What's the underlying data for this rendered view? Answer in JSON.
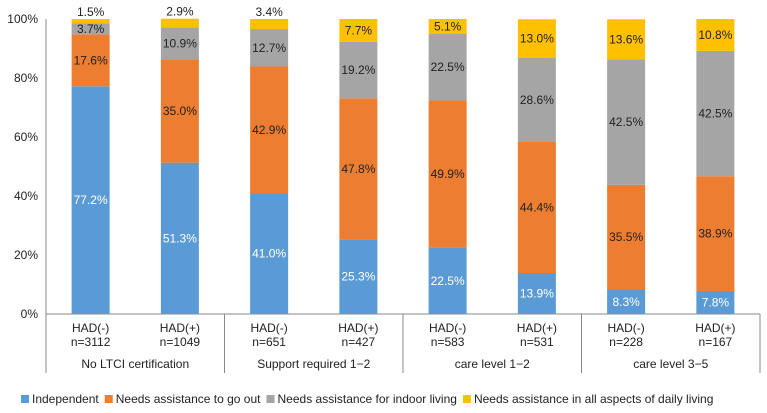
{
  "chart_data": {
    "type": "bar",
    "stacked": true,
    "title": "",
    "xlabel": "",
    "ylabel": "",
    "ylim": [
      0,
      100
    ],
    "y_ticks": [
      "0%",
      "20%",
      "40%",
      "60%",
      "80%",
      "100%"
    ],
    "bars": [
      {
        "label": "HAD(-)",
        "n": "n=3112"
      },
      {
        "label": "HAD(+)",
        "n": "n=1049"
      },
      {
        "label": "HAD(-)",
        "n": "n=651"
      },
      {
        "label": "HAD(+)",
        "n": "n=427"
      },
      {
        "label": "HAD(-)",
        "n": "n=583"
      },
      {
        "label": "HAD(+)",
        "n": "n=531"
      },
      {
        "label": "HAD(-)",
        "n": "n=228"
      },
      {
        "label": "HAD(+)",
        "n": "n=167"
      }
    ],
    "groups": [
      {
        "label": "No LTCI certification",
        "bars": [
          0,
          1
        ]
      },
      {
        "label": "Support required 1−2",
        "bars": [
          2,
          3
        ]
      },
      {
        "label": "care level 1−2",
        "bars": [
          4,
          5
        ]
      },
      {
        "label": "care level 3−5",
        "bars": [
          6,
          7
        ]
      }
    ],
    "series": [
      {
        "name": "Independent",
        "color": "#5B9BD5",
        "values": [
          77.2,
          51.3,
          41.0,
          25.3,
          22.5,
          13.9,
          8.3,
          7.8
        ],
        "labels": [
          "77.2%",
          "51.3%",
          "41.0%",
          "25.3%",
          "22.5%",
          "13.9%",
          "8.3%",
          "7.8%"
        ],
        "label_color": "#ffffff"
      },
      {
        "name": "Needs assistance to go out",
        "color": "#ED7D31",
        "values": [
          17.6,
          35.0,
          42.9,
          47.8,
          49.9,
          44.4,
          35.5,
          38.9
        ],
        "labels": [
          "17.6%",
          "35.0%",
          "42.9%",
          "47.8%",
          "49.9%",
          "44.4%",
          "35.5%",
          "38.9%"
        ],
        "label_color": "#222222"
      },
      {
        "name": "Needs assistance for indoor living",
        "color": "#A5A5A5",
        "values": [
          3.7,
          10.9,
          12.7,
          19.2,
          22.5,
          28.6,
          42.5,
          42.5
        ],
        "labels": [
          "3.7%",
          "10.9%",
          "12.7%",
          "19.2%",
          "22.5%",
          "28.6%",
          "42.5%",
          "42.5%"
        ],
        "label_color": "#222222"
      },
      {
        "name": "Needs assistance in all aspects of daily living",
        "color": "#FFC000",
        "values": [
          1.5,
          2.9,
          3.4,
          7.7,
          5.1,
          13.0,
          13.6,
          10.8
        ],
        "labels": [
          "1.5%",
          "2.9%",
          "3.4%",
          "7.7%",
          "5.1%",
          "13.0%",
          "13.6%",
          "10.8%"
        ],
        "label_color": "#222222",
        "label_above": [
          true,
          true,
          true,
          false,
          false,
          false,
          false,
          false
        ]
      }
    ]
  }
}
